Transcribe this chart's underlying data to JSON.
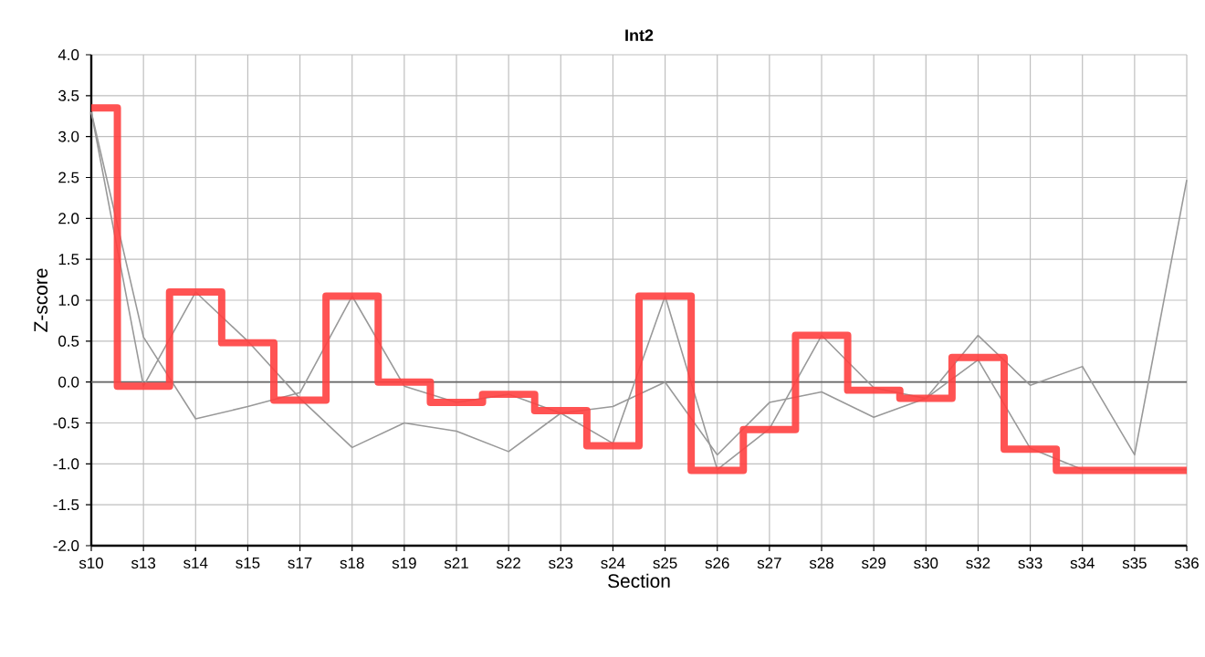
{
  "chart_data": {
    "type": "line",
    "title": "Int2",
    "xlabel": "Section",
    "ylabel": "Z-score",
    "categories": [
      "s10",
      "s13",
      "s14",
      "s15",
      "s17",
      "s18",
      "s19",
      "s21",
      "s22",
      "s23",
      "s24",
      "s25",
      "s26",
      "s27",
      "s28",
      "s29",
      "s30",
      "s32",
      "s33",
      "s34",
      "s35",
      "s36"
    ],
    "series": [
      {
        "color": "#999999",
        "values": [
          3.3,
          0.55,
          -0.45,
          -0.3,
          -0.13,
          1.05,
          -0.05,
          -0.25,
          -0.15,
          -0.38,
          -0.75,
          1.05,
          -1.07,
          -0.57,
          0.57,
          -0.07,
          -0.2,
          0.27,
          -0.81,
          -1.07,
          -1.07,
          -1.07
        ]
      },
      {
        "color": "#999999",
        "values": [
          3.3,
          -0.05,
          1.1,
          0.5,
          -0.2,
          -0.8,
          -0.5,
          -0.6,
          -0.85,
          -0.38,
          -0.3,
          0.0,
          -0.89,
          -0.25,
          -0.12,
          -0.43,
          -0.2,
          0.57,
          -0.04,
          0.19,
          -0.89,
          2.47
        ]
      },
      {
        "type": "step",
        "color": "#ff4040",
        "values": [
          3.35,
          -0.05,
          1.1,
          0.48,
          -0.22,
          1.05,
          0.0,
          -0.25,
          -0.15,
          -0.35,
          -0.78,
          1.05,
          -1.08,
          -0.58,
          0.57,
          -0.1,
          -0.2,
          0.3,
          -0.82,
          -1.08,
          -1.08,
          -1.08
        ]
      }
    ],
    "ylim": [
      -2,
      4
    ],
    "yticks": [
      {
        "value": -2,
        "label": "-2.0"
      },
      {
        "value": -1.5,
        "label": "-1.5"
      },
      {
        "value": -1,
        "label": "-1.0"
      },
      {
        "value": -0.5,
        "label": "-0.5"
      },
      {
        "value": 0,
        "label": "0.0"
      },
      {
        "value": 0.5,
        "label": "0.5"
      },
      {
        "value": 1,
        "label": "1.0"
      },
      {
        "value": 1.5,
        "label": "1.5"
      },
      {
        "value": 2,
        "label": "2.0"
      },
      {
        "value": 2.5,
        "label": "2.5"
      },
      {
        "value": 3,
        "label": "3.0"
      },
      {
        "value": 3.5,
        "label": "3.5"
      },
      {
        "value": 4,
        "label": "4.0"
      }
    ],
    "ref_lines": [
      {
        "axis": "y",
        "value": 0,
        "color": "#666666"
      }
    ],
    "grid": true,
    "marker": "none",
    "line_style": "solid"
  }
}
